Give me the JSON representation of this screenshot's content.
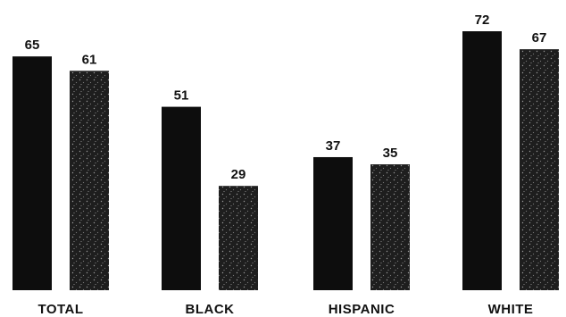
{
  "chart_data": {
    "type": "bar",
    "title": "",
    "xlabel": "",
    "ylabel": "",
    "categories": [
      "TOTAL",
      "BLACK",
      "HISPANIC",
      "WHITE"
    ],
    "series": [
      {
        "values": [
          65,
          51,
          37,
          72
        ],
        "color": "#0d0d0d"
      },
      {
        "values": [
          61,
          29,
          35,
          67
        ],
        "color": "#222222"
      }
    ],
    "ylim": [
      0,
      100
    ],
    "grid": false,
    "legend": "none"
  }
}
